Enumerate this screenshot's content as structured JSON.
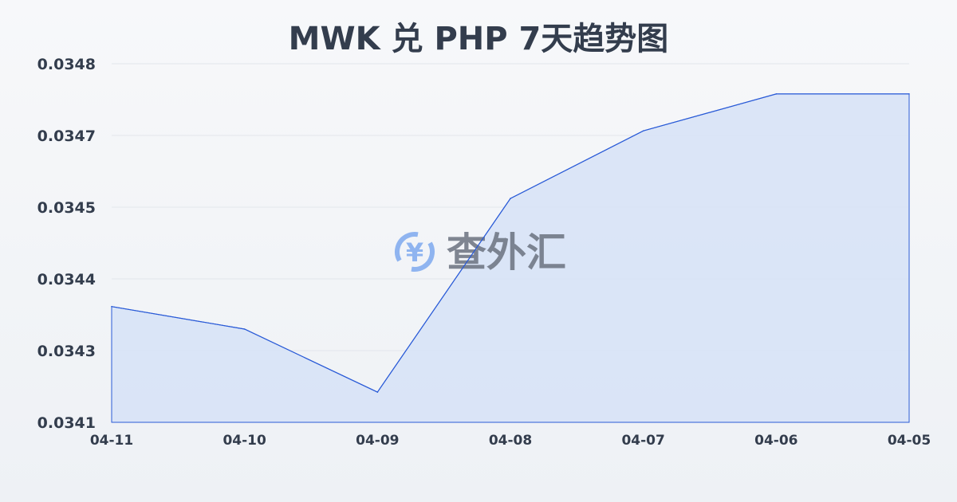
{
  "chart_data": {
    "type": "area",
    "title": "MWK 兑 PHP 7天趋势图",
    "xlabel": "",
    "ylabel": "",
    "categories": [
      "04-11",
      "04-10",
      "04-09",
      "04-08",
      "04-07",
      "04-06",
      "04-05"
    ],
    "values": [
      0.034346,
      0.034302,
      0.034179,
      0.034557,
      0.034689,
      0.034761,
      0.034761
    ],
    "ylim": [
      0.03412,
      0.03482
    ],
    "yticks": [
      0.03412,
      0.03426,
      0.0344,
      0.03454,
      0.03468,
      0.03482
    ],
    "ytick_labels": [
      "0.0341",
      "0.0343",
      "0.0344",
      "0.0345",
      "0.0347",
      "0.0348"
    ],
    "grid": true,
    "legend": "none",
    "colors": {
      "line": "#2a5bd7",
      "fill": "#d6e2f7",
      "grid": "#e3e6eb",
      "text": "#333d4d"
    }
  },
  "watermark": {
    "text": "查外汇",
    "icon": "yen-exchange-icon",
    "icon_color": "#8fb4f0"
  }
}
